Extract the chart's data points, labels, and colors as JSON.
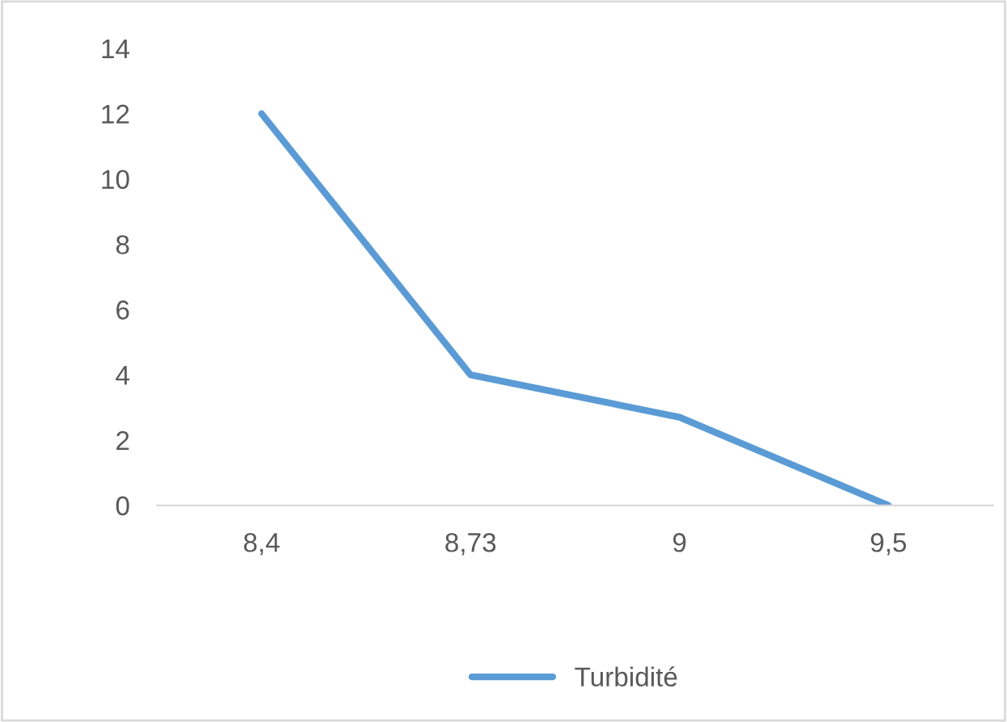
{
  "chart_data": {
    "type": "line",
    "categories": [
      "8,4",
      "8,73",
      "9",
      "9,5"
    ],
    "series": [
      {
        "name": "Turbidité",
        "color": "#5b9bd5",
        "values": [
          12,
          4,
          2.7,
          0
        ]
      }
    ],
    "ylim": [
      0,
      14
    ],
    "yticks": [
      0,
      2,
      4,
      6,
      8,
      10,
      12,
      14
    ],
    "grid": false,
    "legend": "bottom",
    "marker": "none",
    "line_style": "solid"
  }
}
